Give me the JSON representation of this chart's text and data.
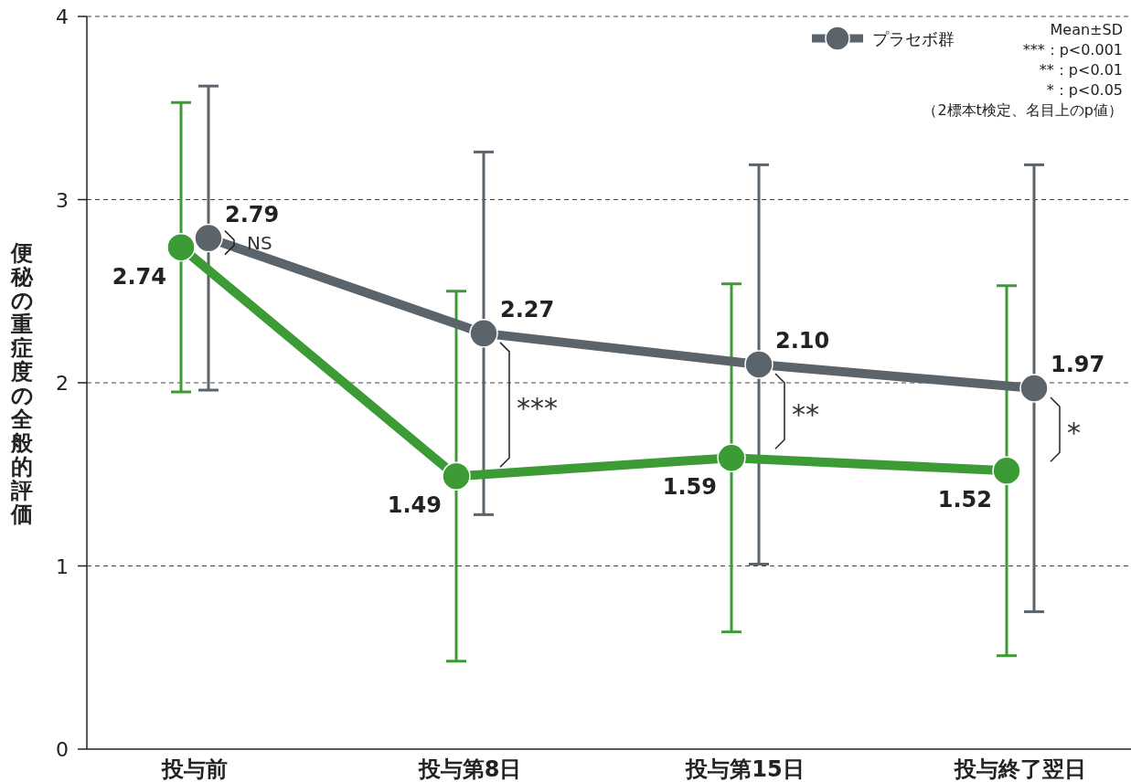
{
  "chart_data": {
    "type": "line",
    "ylabel": "便秘の重症度の全般的評価",
    "categories": [
      "投与前",
      "投与第8日",
      "投与第15日",
      "投与終了翌日"
    ],
    "series": [
      {
        "color": "#3d9b35",
        "values": [
          2.74,
          1.49,
          1.59,
          1.52
        ],
        "errors": [
          0.79,
          1.01,
          0.95,
          1.01
        ],
        "value_labels": [
          "2.74",
          "1.49",
          "1.59",
          "1.52"
        ]
      },
      {
        "name": "プラセボ群",
        "color": "#5b636b",
        "values": [
          2.79,
          2.27,
          2.1,
          1.97
        ],
        "errors": [
          0.83,
          0.99,
          1.09,
          1.22
        ],
        "value_labels": [
          "2.79",
          "2.27",
          "2.10",
          "1.97"
        ]
      }
    ],
    "ylim": [
      0,
      4
    ],
    "yticks": [
      0,
      1,
      2,
      3,
      4
    ],
    "grid": "y",
    "legend": "top right",
    "marker": "circle",
    "line_style": "solid",
    "annotations": [
      "NS",
      "***",
      "**",
      "*",
      "Mean±SD",
      "***：p<0.001",
      "**：p<0.01",
      "*：p<0.05",
      "（2標本t検定、名目上のp値）"
    ]
  }
}
